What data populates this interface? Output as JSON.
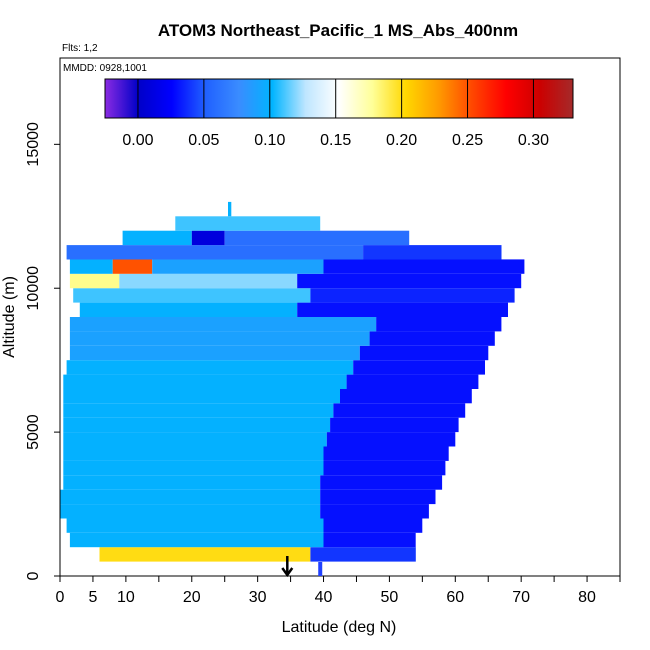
{
  "chart_data": {
    "type": "heatmap",
    "title": "ATOM3 Northeast_Pacific_1 MS_Abs_400nm",
    "flights_label": "Flts: 1,2",
    "dates_label": "MMDD: 0928,1001",
    "xlabel": "Latitude (deg N)",
    "ylabel": "Altitude (m)",
    "xlim": [
      0,
      85
    ],
    "ylim": [
      0,
      18000
    ],
    "x_ticks": [
      0,
      5,
      10,
      20,
      30,
      40,
      50,
      60,
      70,
      80
    ],
    "x_minor_ticks": [
      15,
      25,
      35,
      45,
      55,
      65,
      75,
      85
    ],
    "y_ticks": [
      0,
      5000,
      10000,
      15000
    ],
    "colorbar": {
      "min": -0.025,
      "max": 0.33,
      "ticks": [
        0.0,
        0.05,
        0.1,
        0.15,
        0.2,
        0.25,
        0.3
      ],
      "tick_labels": [
        "0.00",
        "0.05",
        "0.10",
        "0.15",
        "0.20",
        "0.25",
        "0.30"
      ],
      "colors": [
        "#8a2be2",
        "#0000c8",
        "#0000ff",
        "#2060ff",
        "#3a8cff",
        "#00b4ff",
        "#bfe6ff",
        "#ffffff",
        "#ffff99",
        "#ffd700",
        "#ff9900",
        "#ff4500",
        "#ff0000",
        "#cc0000",
        "#a52a2a"
      ]
    },
    "marker_latitude": 34.5,
    "marker_ground_latitude": 39.5,
    "layers": [
      {
        "alt": [
          0,
          500
        ],
        "segments": []
      },
      {
        "alt": [
          500,
          1000
        ],
        "segments": [
          [
            6,
            38,
            0.2
          ],
          [
            38,
            54,
            0.04
          ]
        ]
      },
      {
        "alt": [
          1000,
          1500
        ],
        "segments": [
          [
            1.5,
            40,
            0.1
          ],
          [
            40,
            54,
            0.03
          ]
        ]
      },
      {
        "alt": [
          1500,
          2000
        ],
        "segments": [
          [
            1,
            40,
            0.1
          ],
          [
            40,
            55,
            0.03
          ]
        ]
      },
      {
        "alt": [
          2000,
          2500
        ],
        "segments": [
          [
            0,
            39.5,
            0.1
          ],
          [
            39.5,
            56,
            0.03
          ]
        ]
      },
      {
        "alt": [
          2500,
          3000
        ],
        "segments": [
          [
            0,
            39.5,
            0.1
          ],
          [
            39.5,
            57,
            0.03
          ]
        ]
      },
      {
        "alt": [
          3000,
          3500
        ],
        "segments": [
          [
            0.5,
            39.5,
            0.1
          ],
          [
            39.5,
            58,
            0.03
          ]
        ]
      },
      {
        "alt": [
          3500,
          4000
        ],
        "segments": [
          [
            0.5,
            40,
            0.1
          ],
          [
            40,
            58.5,
            0.03
          ]
        ]
      },
      {
        "alt": [
          4000,
          4500
        ],
        "segments": [
          [
            0.5,
            40,
            0.1
          ],
          [
            40,
            59,
            0.03
          ]
        ]
      },
      {
        "alt": [
          4500,
          5000
        ],
        "segments": [
          [
            0.5,
            40.5,
            0.1
          ],
          [
            40.5,
            60,
            0.03
          ]
        ]
      },
      {
        "alt": [
          5000,
          5500
        ],
        "segments": [
          [
            0.5,
            41,
            0.1
          ],
          [
            41,
            60.5,
            0.03
          ]
        ]
      },
      {
        "alt": [
          5500,
          6000
        ],
        "segments": [
          [
            0.5,
            41.5,
            0.1
          ],
          [
            41.5,
            61.5,
            0.03
          ]
        ]
      },
      {
        "alt": [
          6000,
          6500
        ],
        "segments": [
          [
            0.5,
            42.5,
            0.1
          ],
          [
            42.5,
            62.5,
            0.03
          ]
        ]
      },
      {
        "alt": [
          6500,
          7000
        ],
        "segments": [
          [
            0.5,
            43.5,
            0.1
          ],
          [
            43.5,
            63.5,
            0.03
          ]
        ]
      },
      {
        "alt": [
          7000,
          7500
        ],
        "segments": [
          [
            1,
            44.5,
            0.1
          ],
          [
            44.5,
            64.5,
            0.03
          ]
        ]
      },
      {
        "alt": [
          7500,
          8000
        ],
        "segments": [
          [
            1.5,
            45.5,
            0.09
          ],
          [
            45.5,
            65,
            0.03
          ]
        ]
      },
      {
        "alt": [
          8000,
          8500
        ],
        "segments": [
          [
            1.5,
            47,
            0.09
          ],
          [
            47,
            66,
            0.03
          ]
        ]
      },
      {
        "alt": [
          8500,
          9000
        ],
        "segments": [
          [
            1.5,
            48,
            0.09
          ],
          [
            48,
            67,
            0.03
          ]
        ]
      },
      {
        "alt": [
          9000,
          9500
        ],
        "segments": [
          [
            3,
            36,
            0.1
          ],
          [
            36,
            68,
            0.03
          ]
        ]
      },
      {
        "alt": [
          9500,
          10000
        ],
        "segments": [
          [
            2,
            38,
            0.11
          ],
          [
            38,
            69,
            0.035
          ]
        ]
      },
      {
        "alt": [
          10000,
          10500
        ],
        "segments": [
          [
            1.5,
            9,
            0.18
          ],
          [
            9,
            36,
            0.12
          ],
          [
            36,
            70,
            0.03
          ]
        ]
      },
      {
        "alt": [
          10500,
          11000
        ],
        "segments": [
          [
            1.5,
            8,
            0.1
          ],
          [
            8,
            14,
            0.25
          ],
          [
            14,
            40,
            0.09
          ],
          [
            40,
            70.5,
            0.03
          ]
        ]
      },
      {
        "alt": [
          11000,
          11500
        ],
        "segments": [
          [
            1,
            46,
            0.06
          ],
          [
            46,
            67,
            0.04
          ]
        ]
      },
      {
        "alt": [
          11500,
          12000
        ],
        "segments": [
          [
            9.5,
            20,
            0.1
          ],
          [
            20,
            25,
            0.01
          ],
          [
            25,
            53,
            0.06
          ]
        ]
      },
      {
        "alt": [
          12000,
          12500
        ],
        "segments": [
          [
            17.5,
            39.5,
            0.11
          ]
        ]
      },
      {
        "alt": [
          12500,
          13000
        ],
        "segments": [
          [
            25.5,
            26,
            0.1
          ]
        ]
      }
    ]
  }
}
